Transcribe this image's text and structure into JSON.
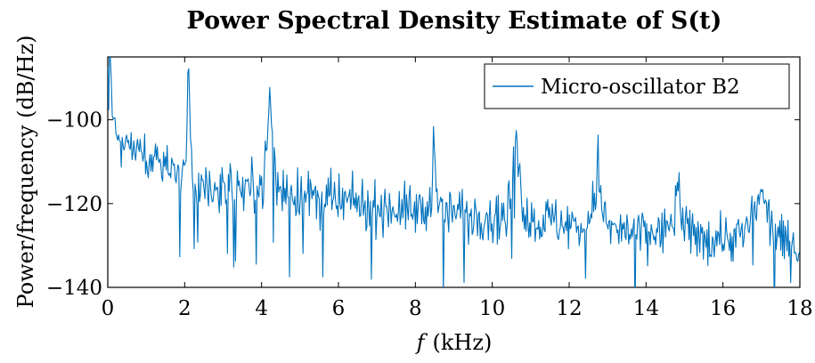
{
  "chart_data": {
    "type": "line",
    "title": "Power Spectral Density Estimate of S(t)",
    "xlabel_var": "f",
    "xlabel_unit": "(kHz)",
    "ylabel": "Power/frequency (dB/Hz)",
    "xlim": [
      0,
      18
    ],
    "ylim": [
      -140,
      -85
    ],
    "x_ticks": [
      0,
      2,
      4,
      6,
      8,
      10,
      12,
      14,
      16,
      18
    ],
    "x_tick_labels": [
      "0",
      "2",
      "4",
      "6",
      "8",
      "10",
      "12",
      "14",
      "16",
      "18"
    ],
    "y_ticks": [
      -140,
      -120,
      -100
    ],
    "y_tick_labels": [
      "−140",
      "−120",
      "−100"
    ],
    "grid": false,
    "legend_position": "top-right",
    "series": [
      {
        "name": "Micro-oscillator B2",
        "color": "#0072bd",
        "x_step": 0.0234,
        "x": [
          0,
          0.05,
          0.1,
          0.15,
          0.2,
          0.25,
          0.3,
          0.35,
          0.4,
          0.5,
          0.6,
          0.7,
          0.8,
          0.9,
          1.0,
          1.2,
          1.4,
          1.6,
          1.8,
          2.0,
          2.05,
          2.1,
          2.15,
          2.2,
          2.4,
          2.6,
          2.8,
          3.0,
          3.5,
          4.0,
          4.15,
          4.22,
          4.3,
          4.4,
          4.6,
          5.0,
          5.5,
          6.0,
          6.5,
          7.0,
          7.5,
          8.0,
          8.4,
          8.48,
          8.56,
          8.7,
          9.0,
          9.5,
          10.0,
          10.4,
          10.55,
          10.62,
          10.7,
          10.9,
          11.2,
          11.5,
          12.0,
          12.5,
          12.7,
          12.75,
          12.8,
          13.0,
          13.5,
          14.0,
          14.5,
          14.8,
          14.85,
          14.9,
          15.0,
          15.5,
          16.0,
          16.5,
          16.95,
          17.0,
          17.05,
          17.5,
          18.0
        ],
        "y": [
          -90,
          -85,
          -95,
          -100,
          -104,
          -105,
          -106,
          -107,
          -106,
          -106,
          -107,
          -107,
          -108,
          -108,
          -109,
          -109,
          -110,
          -111,
          -113,
          -113,
          -103,
          -88,
          -103,
          -114,
          -115,
          -115,
          -116,
          -116,
          -116,
          -117,
          -106,
          -92,
          -106,
          -116,
          -117,
          -118,
          -119,
          -120,
          -120,
          -121,
          -121,
          -122,
          -121,
          -100,
          -121,
          -122,
          -122,
          -122,
          -123,
          -123,
          -112,
          -100,
          -114,
          -124,
          -124,
          -124,
          -125,
          -126,
          -116,
          -109,
          -118,
          -126,
          -127,
          -127,
          -127,
          -120,
          -114,
          -120,
          -127,
          -128,
          -128,
          -128,
          -120,
          -113,
          -121,
          -129,
          -130
        ]
      }
    ]
  }
}
